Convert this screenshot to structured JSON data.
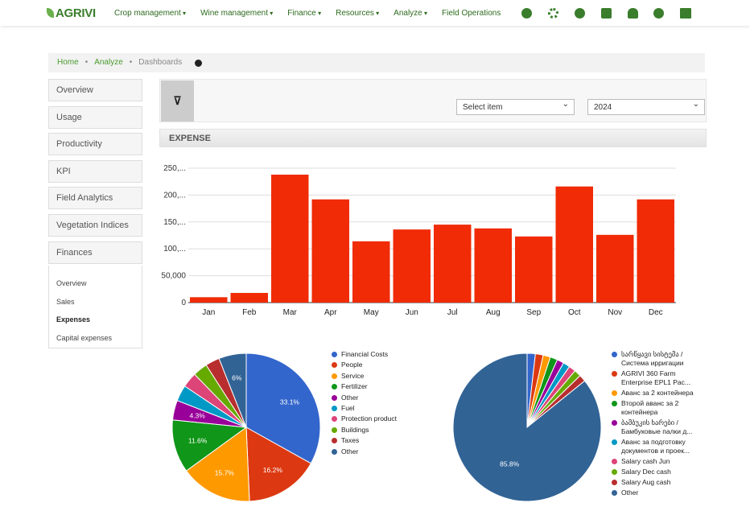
{
  "nav": {
    "logo": "AGRIVI",
    "items": [
      "Crop management",
      "Wine management",
      "Finance",
      "Resources",
      "Analyze",
      "Field Operations"
    ]
  },
  "breadcrumb": [
    "Home",
    "Analyze",
    "Dashboards"
  ],
  "sidebar": {
    "items": [
      "Overview",
      "Usage",
      "Productivity",
      "KPI",
      "Field Analytics",
      "Vegetation Indices",
      "Finances"
    ],
    "subitems": [
      "Overview",
      "Sales",
      "Expenses",
      "Capital expenses"
    ]
  },
  "filters": {
    "item": "Select item",
    "year": "2024"
  },
  "section_title": "EXPENSE",
  "chart_data": [
    {
      "type": "bar",
      "categories": [
        "Jan",
        "Feb",
        "Mar",
        "Apr",
        "May",
        "Jun",
        "Jul",
        "Aug",
        "Sep",
        "Oct",
        "Nov",
        "Dec"
      ],
      "values": [
        10000,
        18000,
        238000,
        192000,
        114000,
        136000,
        145000,
        138000,
        123000,
        216000,
        126000,
        192000
      ],
      "color": "#f02b06",
      "ylim": [
        0,
        250000
      ],
      "yticks": [
        0,
        {
          "value": 50000,
          "label": "50,000"
        },
        {
          "value": 100000,
          "label": "100,..."
        },
        {
          "value": 150000,
          "label": "150,..."
        },
        {
          "value": 200000,
          "label": "200,..."
        },
        {
          "value": 250000,
          "label": "250,..."
        }
      ],
      "grid": true
    },
    {
      "type": "pie",
      "categories": [
        "Financial Costs",
        "People",
        "Service",
        "Fertilizer",
        "Other",
        "Fuel",
        "Protection product",
        "Buildings",
        "Taxes",
        "Other"
      ],
      "values": [
        33.1,
        16.2,
        15.7,
        11.6,
        4.3,
        3.5,
        3.3,
        3.2,
        3.1,
        6
      ],
      "value_labels": [
        "33.1%",
        "16.2%",
        "15.7%",
        "11.6%",
        "4.3%",
        null,
        null,
        null,
        null,
        "6%"
      ],
      "colors": [
        "#3366cc",
        "#dc3912",
        "#ff9900",
        "#109618",
        "#990099",
        "#0099c6",
        "#dd4477",
        "#66aa00",
        "#b82e2e",
        "#316395"
      ]
    },
    {
      "type": "pie",
      "categories": [
        "სარწყავი სისტემა / Система ирригации",
        "AGRIVI 360 Farm Enterprise EPL1 Pac...",
        "Аванс за 2 контейнера",
        "Второй аванс за 2 контейнера",
        "ბამბუკის ხარები / Бамбуковые палки д...",
        "Аванс за подготовку документов и проек...",
        "Salary cash Jun",
        "Salary Dec cash",
        "Salary Aug cash",
        "Other"
      ],
      "values": [
        1.8,
        1.7,
        1.6,
        1.6,
        1.5,
        1.5,
        1.5,
        1.5,
        1.5,
        85.8
      ],
      "value_labels": [
        null,
        null,
        null,
        null,
        null,
        null,
        null,
        null,
        null,
        "85.8%"
      ],
      "colors": [
        "#3366cc",
        "#dc3912",
        "#ff9900",
        "#109618",
        "#990099",
        "#0099c6",
        "#dd4477",
        "#66aa00",
        "#b82e2e",
        "#316395"
      ]
    }
  ]
}
